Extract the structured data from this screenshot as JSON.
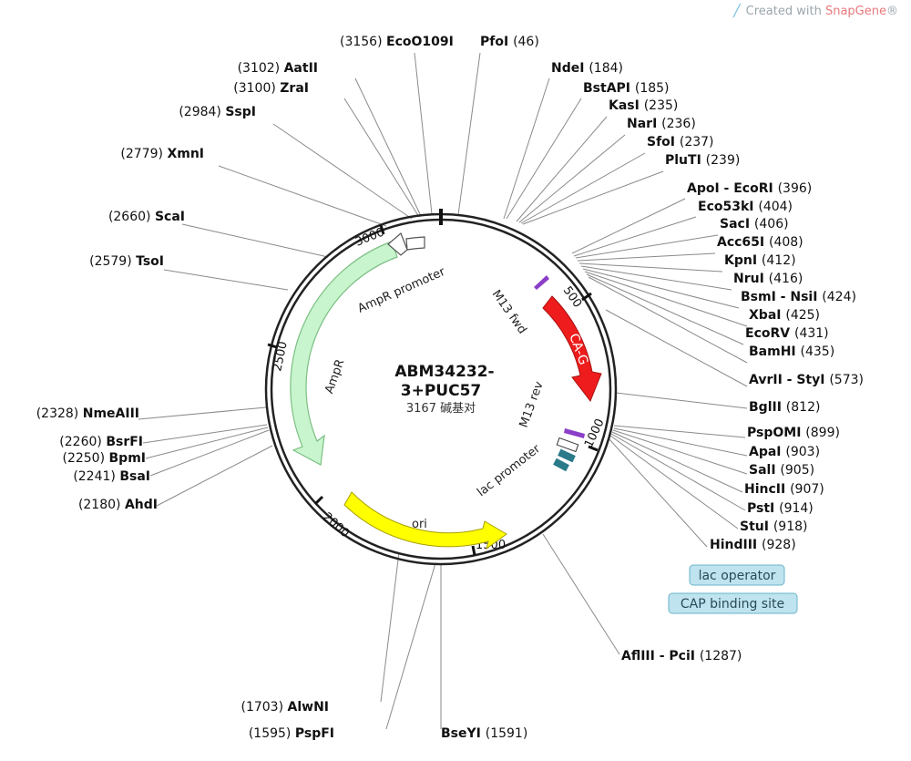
{
  "credit": {
    "prefix": "Created with ",
    "brand": "SnapGene",
    "suffix": "®",
    "icon": "snapgene-leaf-icon"
  },
  "center": {
    "line1": "ABM34232-",
    "line2": "3+PUC57",
    "line3": "3167 碱基对"
  },
  "ruler": [
    "500",
    "1000",
    "1500",
    "2000",
    "2500",
    "3000"
  ],
  "features": [
    {
      "key": "cag",
      "name": "CA-G",
      "color": "#ee1c1c"
    },
    {
      "key": "ori",
      "name": "ori",
      "color": "#ffff00"
    },
    {
      "key": "ampr",
      "name": "AmpR",
      "color": "#c8f5cd"
    },
    {
      "key": "amprp",
      "name": "AmpR promoter",
      "color": "#ffffff"
    },
    {
      "key": "m13fwd",
      "name": "M13 fwd",
      "color": "#8b3fc8"
    },
    {
      "key": "m13rev",
      "name": "M13 rev",
      "color": "#8b3fc8"
    },
    {
      "key": "lacp",
      "name": "lac promoter",
      "color": "#ffffff"
    },
    {
      "key": "laco",
      "name": "lac operator",
      "color": "#bfe3ef"
    },
    {
      "key": "cap",
      "name": "CAP binding site",
      "color": "#bfe3ef"
    }
  ],
  "sites": [
    {
      "name": "EcoO109I",
      "pos": "(3156)"
    },
    {
      "name": "PfoI",
      "pos": "(46)"
    },
    {
      "name": "NdeI",
      "pos": "(184)"
    },
    {
      "name": "AatII",
      "pos": "(3102)"
    },
    {
      "name": "ZraI",
      "pos": "(3100)"
    },
    {
      "name": "BstAPI",
      "pos": "(185)"
    },
    {
      "name": "KasI",
      "pos": "(235)"
    },
    {
      "name": "SspI",
      "pos": "(2984)"
    },
    {
      "name": "NarI",
      "pos": "(236)"
    },
    {
      "name": "SfoI",
      "pos": "(237)"
    },
    {
      "name": "XmnI",
      "pos": "(2779)"
    },
    {
      "name": "PluTI",
      "pos": "(239)"
    },
    {
      "name": "ApoI - EcoRI",
      "pos": "(396)"
    },
    {
      "name": "Eco53kI",
      "pos": "(404)"
    },
    {
      "name": "ScaI",
      "pos": "(2660)"
    },
    {
      "name": "SacI",
      "pos": "(406)"
    },
    {
      "name": "Acc65I",
      "pos": "(408)"
    },
    {
      "name": "TsoI",
      "pos": "(2579)"
    },
    {
      "name": "KpnI",
      "pos": "(412)"
    },
    {
      "name": "NruI",
      "pos": "(416)"
    },
    {
      "name": "BsmI - NsiI",
      "pos": "(424)"
    },
    {
      "name": "XbaI",
      "pos": "(425)"
    },
    {
      "name": "EcoRV",
      "pos": "(431)"
    },
    {
      "name": "BamHI",
      "pos": "(435)"
    },
    {
      "name": "AvrII - StyI",
      "pos": "(573)"
    },
    {
      "name": "BglII",
      "pos": "(812)"
    },
    {
      "name": "NmeAIII",
      "pos": "(2328)"
    },
    {
      "name": "PspOMI",
      "pos": "(899)"
    },
    {
      "name": "BsrFI",
      "pos": "(2260)"
    },
    {
      "name": "ApaI",
      "pos": "(903)"
    },
    {
      "name": "BpmI",
      "pos": "(2250)"
    },
    {
      "name": "SalI",
      "pos": "(905)"
    },
    {
      "name": "BsaI",
      "pos": "(2241)"
    },
    {
      "name": "HincII",
      "pos": "(907)"
    },
    {
      "name": "PstI",
      "pos": "(914)"
    },
    {
      "name": "AhdI",
      "pos": "(2180)"
    },
    {
      "name": "StuI",
      "pos": "(918)"
    },
    {
      "name": "HindIII",
      "pos": "(928)"
    },
    {
      "name": "AflIII - PciI",
      "pos": "(1287)"
    },
    {
      "name": "AlwNI",
      "pos": "(1703)"
    },
    {
      "name": "PspFI",
      "pos": "(1595)"
    },
    {
      "name": "BseYI",
      "pos": "(1591)"
    }
  ]
}
